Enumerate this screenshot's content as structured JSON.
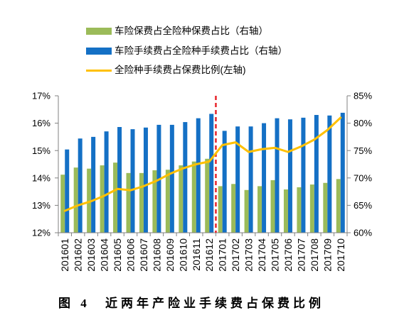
{
  "chart_data": {
    "type": "bar",
    "categories": [
      "201601",
      "201602",
      "201603",
      "201604",
      "201605",
      "201606",
      "201607",
      "201608",
      "201609",
      "201610",
      "201611",
      "201612",
      "201701",
      "201702",
      "201703",
      "201704",
      "201705",
      "201706",
      "201707",
      "201708",
      "201709",
      "201710"
    ],
    "series": [
      {
        "name": "车险保费占全险种保费占比（右轴）",
        "type": "bar",
        "axis": "right",
        "color": "#9bbb59",
        "values": [
          70.6,
          71.9,
          71.7,
          72.3,
          72.8,
          70.9,
          70.9,
          71.4,
          71.5,
          72.3,
          73.0,
          73.5,
          68.5,
          68.9,
          67.8,
          68.5,
          69.6,
          67.9,
          68.3,
          68.8,
          69.1,
          69.8
        ]
      },
      {
        "name": "车险手续费占全险种手续费占比（右轴）",
        "type": "bar",
        "axis": "right",
        "color": "#1470c5",
        "values": [
          75.2,
          77.2,
          77.5,
          78.5,
          79.3,
          78.9,
          79.2,
          79.7,
          79.7,
          80.2,
          80.9,
          81.7,
          78.6,
          79.4,
          79.4,
          80.0,
          80.9,
          80.7,
          81.0,
          81.5,
          81.4,
          81.9
        ]
      },
      {
        "name": "全险种手续费占保费比例(左轴)",
        "type": "line",
        "axis": "left",
        "color": "#ffc000",
        "values": [
          12.8,
          13.0,
          13.15,
          13.35,
          13.6,
          13.55,
          13.7,
          13.9,
          14.15,
          14.35,
          14.5,
          14.6,
          15.2,
          15.3,
          14.95,
          15.05,
          15.1,
          14.95,
          15.15,
          15.4,
          15.75,
          16.2
        ]
      }
    ],
    "y_left": {
      "range": [
        12,
        17
      ],
      "ticks": [
        {
          "value": 12,
          "label": "12%"
        },
        {
          "value": 13,
          "label": "13%"
        },
        {
          "value": 14,
          "label": "14%"
        },
        {
          "value": 15,
          "label": "15%"
        },
        {
          "value": 16,
          "label": "16%"
        },
        {
          "value": 17,
          "label": "17%"
        }
      ]
    },
    "y_right": {
      "range": [
        60,
        85
      ],
      "ticks": [
        {
          "value": 60,
          "label": "60%"
        },
        {
          "value": 65,
          "label": "65%"
        },
        {
          "value": 70,
          "label": "70%"
        },
        {
          "value": 75,
          "label": "75%"
        },
        {
          "value": 80,
          "label": "80%"
        },
        {
          "value": 85,
          "label": "85%"
        }
      ]
    },
    "grid": false,
    "legend_position": "top",
    "divider": {
      "between": [
        "201612",
        "201701"
      ],
      "style": "dashed",
      "color": "#e8242b"
    }
  },
  "caption": {
    "figure_label": "图 4",
    "text": "近两年产险业手续费占保费比例"
  }
}
